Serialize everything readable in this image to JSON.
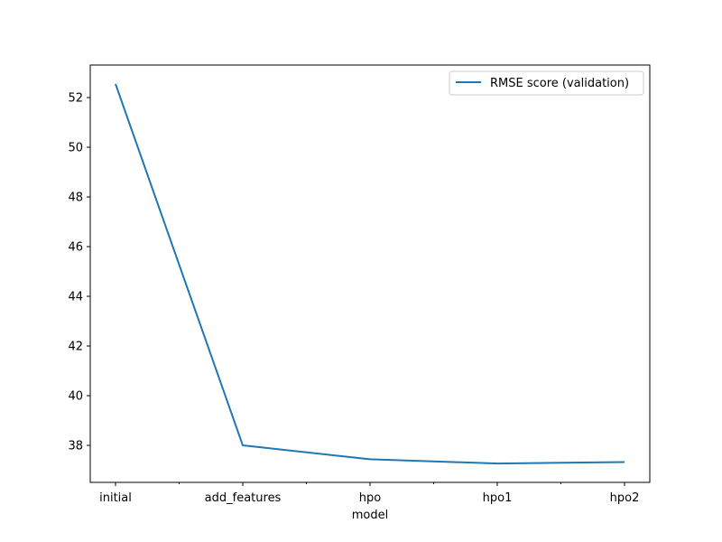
{
  "chart_data": {
    "type": "line",
    "title": "",
    "xlabel": "model",
    "ylabel": "",
    "categories": [
      "initial",
      "add_features",
      "hpo",
      "hpo1",
      "hpo2"
    ],
    "series": [
      {
        "name": "RMSE score (validation)",
        "values": [
          52.55,
          38.0,
          37.44,
          37.27,
          37.33
        ],
        "color": "#1f77b4"
      }
    ],
    "yticks": [
      38,
      40,
      42,
      44,
      46,
      48,
      50,
      52
    ],
    "ylim": [
      36.51,
      53.31
    ],
    "minor_x_ticks": true,
    "grid": false,
    "legend_position": "top-right"
  }
}
